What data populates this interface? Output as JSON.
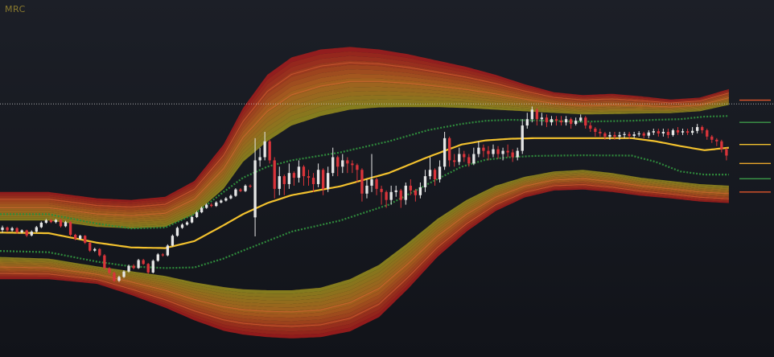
{
  "indicator": {
    "label": "MRC"
  },
  "colors": {
    "background_top": "#1c1f27",
    "background_bottom": "#111319",
    "mean": "#f2c12e",
    "inner_band": "#2f8a3c",
    "band_outer": "#b4181c",
    "band_mid": "#c06a1e",
    "band_inner": "#8e8a1e",
    "candle_up": "#e6e6e6",
    "candle_down": "#d9343a",
    "price_line": "#cfcfcf",
    "scale_mark_red": "#e0552b",
    "scale_mark_orange": "#e8a52a",
    "scale_mark_yellow": "#f2c12e",
    "scale_mark_green": "#3c9a48"
  },
  "chart_data": {
    "type": "line",
    "title": "",
    "xlabel": "",
    "ylabel": "",
    "xlim": [
      0,
      152
    ],
    "ylim": [
      0,
      100
    ],
    "grid": false,
    "price_line_level": 74.8,
    "series": [
      {
        "role": "mean",
        "x": [
          0,
          10,
          20,
          27,
          34,
          40,
          46,
          50,
          55,
          60,
          70,
          80,
          88,
          95,
          100,
          105,
          110,
          120,
          130,
          135,
          140,
          145,
          150
        ],
        "values": [
          34.2,
          34.0,
          31.0,
          29.5,
          29.3,
          31.5,
          36.5,
          40.0,
          43.5,
          46.0,
          48.8,
          53.0,
          58.0,
          62.0,
          63.3,
          63.8,
          64.0,
          64.0,
          64.0,
          63.0,
          61.5,
          60.2,
          61.0
        ]
      },
      {
        "role": "inner_upper",
        "x": [
          0,
          10,
          20,
          27,
          34,
          40,
          46,
          50,
          55,
          60,
          70,
          80,
          88,
          95,
          100,
          105,
          110,
          120,
          130,
          135,
          140,
          145,
          150
        ],
        "values": [
          40.0,
          40.0,
          37.0,
          35.5,
          35.8,
          40.0,
          47.0,
          51.5,
          55.0,
          57.0,
          59.5,
          63.0,
          66.5,
          68.5,
          69.5,
          69.8,
          69.6,
          69.2,
          69.5,
          69.8,
          70.0,
          70.8,
          71.0
        ]
      },
      {
        "role": "inner_lower",
        "x": [
          0,
          10,
          20,
          27,
          34,
          40,
          46,
          50,
          55,
          60,
          70,
          80,
          88,
          95,
          100,
          105,
          110,
          120,
          130,
          135,
          140,
          145,
          150
        ],
        "values": [
          28.4,
          28.0,
          25.0,
          23.5,
          23.0,
          23.2,
          26.0,
          28.5,
          31.5,
          34.5,
          38.0,
          43.0,
          49.5,
          55.0,
          57.2,
          58.0,
          58.4,
          58.6,
          58.5,
          56.5,
          53.5,
          52.5,
          52.5
        ]
      },
      {
        "role": "band_upper_outer",
        "x": [
          0,
          10,
          20,
          27,
          34,
          40,
          46,
          50,
          55,
          60,
          66,
          72,
          78,
          84,
          90,
          96,
          102,
          108,
          114,
          120,
          126,
          132,
          138,
          144,
          150
        ],
        "values": [
          47.0,
          47.0,
          45.0,
          44.5,
          45.5,
          50.5,
          62.0,
          73.5,
          84.0,
          89.5,
          92.0,
          92.8,
          92.0,
          90.5,
          88.5,
          86.5,
          84.0,
          81.0,
          78.5,
          77.6,
          78.0,
          77.2,
          76.2,
          76.8,
          79.5
        ]
      },
      {
        "role": "band_upper_inner",
        "x": [
          0,
          10,
          20,
          27,
          34,
          40,
          46,
          50,
          55,
          60,
          66,
          72,
          78,
          84,
          90,
          96,
          102,
          108,
          114,
          120,
          126,
          132,
          138,
          144,
          150
        ],
        "values": [
          38.0,
          38.0,
          36.0,
          35.5,
          36.0,
          40.0,
          48.0,
          56.5,
          63.0,
          68.0,
          71.0,
          73.0,
          73.7,
          73.8,
          73.8,
          73.5,
          73.0,
          72.5,
          72.0,
          71.5,
          71.6,
          71.8,
          71.9,
          72.5,
          74.5
        ]
      },
      {
        "role": "band_lower_inner",
        "x": [
          0,
          10,
          20,
          27,
          34,
          40,
          46,
          50,
          55,
          60,
          66,
          72,
          78,
          84,
          90,
          96,
          102,
          108,
          114,
          120,
          126,
          132,
          138,
          144,
          150
        ],
        "values": [
          26.5,
          26.0,
          23.5,
          22.0,
          20.5,
          18.5,
          17.0,
          16.3,
          16.0,
          16.0,
          16.8,
          19.5,
          24.0,
          31.0,
          38.5,
          44.5,
          49.0,
          51.8,
          53.5,
          54.0,
          53.0,
          51.5,
          50.5,
          49.5,
          49.0
        ]
      },
      {
        "role": "band_lower_outer",
        "x": [
          0,
          10,
          20,
          27,
          34,
          40,
          46,
          50,
          55,
          60,
          66,
          72,
          78,
          84,
          90,
          96,
          102,
          108,
          114,
          120,
          126,
          132,
          138,
          144,
          150
        ],
        "values": [
          19.5,
          19.5,
          18.0,
          14.5,
          10.5,
          6.5,
          3.2,
          2.0,
          1.2,
          0.8,
          1.2,
          3.0,
          7.5,
          16.5,
          26.5,
          34.5,
          41.0,
          45.3,
          47.5,
          47.8,
          47.0,
          45.8,
          45.0,
          44.0,
          43.5
        ]
      }
    ],
    "candles": [
      [
        0,
        35.0,
        35.8,
        36.4,
        34.2
      ],
      [
        1,
        35.8,
        34.9,
        36.1,
        34.3
      ],
      [
        2,
        34.9,
        35.6,
        36.0,
        34.5
      ],
      [
        3,
        35.6,
        34.3,
        35.9,
        33.8
      ],
      [
        4,
        34.3,
        34.9,
        35.2,
        33.9
      ],
      [
        5,
        34.9,
        33.3,
        35.1,
        32.8
      ],
      [
        6,
        33.3,
        34.5,
        34.9,
        33.0
      ],
      [
        7,
        34.5,
        35.9,
        36.3,
        34.2
      ],
      [
        8,
        35.9,
        37.3,
        37.7,
        35.6
      ],
      [
        9,
        37.3,
        38.1,
        38.5,
        37.0
      ],
      [
        10,
        38.1,
        37.5,
        38.6,
        37.2
      ],
      [
        11,
        37.5,
        38.2,
        38.5,
        37.1
      ],
      [
        12,
        38.2,
        36.2,
        38.5,
        35.8
      ],
      [
        13,
        36.2,
        37.5,
        37.9,
        35.9
      ],
      [
        14,
        37.5,
        33.5,
        37.8,
        33.1
      ],
      [
        15,
        33.5,
        32.2,
        33.8,
        31.8
      ],
      [
        16,
        32.2,
        33.2,
        33.5,
        31.9
      ],
      [
        17,
        33.2,
        31.0,
        33.4,
        30.6
      ],
      [
        18,
        31.0,
        28.5,
        31.3,
        28.1
      ],
      [
        19,
        28.5,
        29.0,
        29.4,
        28.1
      ],
      [
        20,
        29.0,
        27.0,
        29.3,
        26.6
      ],
      [
        21,
        27.0,
        23.0,
        27.4,
        22.5
      ],
      [
        22,
        23.0,
        21.5,
        23.3,
        21.0
      ],
      [
        23,
        21.5,
        19.0,
        21.9,
        18.6
      ],
      [
        24,
        19.0,
        20.2,
        20.6,
        18.6
      ],
      [
        25,
        20.2,
        21.9,
        22.3,
        19.9
      ],
      [
        26,
        21.9,
        23.7,
        24.1,
        21.6
      ],
      [
        27,
        23.7,
        23.0,
        24.2,
        22.6
      ],
      [
        28,
        23.0,
        25.5,
        25.9,
        22.7
      ],
      [
        29,
        25.5,
        24.3,
        25.9,
        24.0
      ],
      [
        30,
        24.3,
        21.6,
        24.6,
        21.2
      ],
      [
        31,
        21.6,
        25.3,
        25.7,
        21.3
      ],
      [
        32,
        25.3,
        27.3,
        27.7,
        25.0
      ],
      [
        33,
        27.3,
        27.0,
        27.7,
        26.6
      ],
      [
        34,
        27.0,
        30.1,
        30.5,
        26.7
      ],
      [
        35,
        30.1,
        33.2,
        33.6,
        29.8
      ],
      [
        36,
        33.2,
        35.7,
        36.1,
        32.9
      ],
      [
        37,
        35.7,
        36.7,
        37.1,
        35.4
      ],
      [
        38,
        36.7,
        37.4,
        37.8,
        36.4
      ],
      [
        39,
        37.4,
        39.1,
        39.5,
        37.1
      ],
      [
        40,
        39.1,
        40.6,
        41.0,
        38.8
      ],
      [
        41,
        40.6,
        42.0,
        42.4,
        40.3
      ],
      [
        42,
        42.0,
        43.0,
        43.4,
        41.7
      ],
      [
        43,
        43.0,
        42.6,
        43.5,
        42.2
      ],
      [
        44,
        42.6,
        43.7,
        44.1,
        42.3
      ],
      [
        45,
        43.7,
        44.3,
        44.7,
        43.4
      ],
      [
        46,
        44.3,
        45.0,
        45.4,
        44.0
      ],
      [
        47,
        45.0,
        45.8,
        46.2,
        44.7
      ],
      [
        48,
        45.8,
        47.8,
        48.2,
        45.5
      ],
      [
        49,
        47.8,
        47.3,
        48.2,
        47.0
      ],
      [
        50,
        47.3,
        49.0,
        49.4,
        47.0
      ],
      [
        51,
        49.0,
        48.7,
        49.4,
        48.3
      ],
      [
        52,
        39.0,
        57.0,
        64.0,
        33.0
      ],
      [
        53,
        57.0,
        58.0,
        61.0,
        55.0
      ],
      [
        54,
        58.0,
        63.0,
        66.0,
        57.0
      ],
      [
        55,
        63.0,
        57.0,
        63.5,
        56.0
      ],
      [
        56,
        57.0,
        48.0,
        58.0,
        45.0
      ],
      [
        57,
        48.0,
        52.0,
        55.0,
        46.0
      ],
      [
        58,
        52.0,
        49.5,
        52.5,
        46.0
      ],
      [
        59,
        49.5,
        53.0,
        56.0,
        48.0
      ],
      [
        60,
        53.0,
        51.5,
        53.5,
        49.0
      ],
      [
        61,
        51.5,
        55.0,
        57.0,
        50.0
      ],
      [
        62,
        55.0,
        52.0,
        55.5,
        49.0
      ],
      [
        63,
        52.0,
        51.5,
        54.0,
        49.0
      ],
      [
        64,
        51.5,
        49.5,
        53.0,
        47.0
      ],
      [
        65,
        49.5,
        54.0,
        56.0,
        48.5
      ],
      [
        66,
        54.0,
        48.0,
        54.5,
        46.0
      ],
      [
        67,
        48.0,
        53.0,
        55.0,
        47.0
      ],
      [
        68,
        53.0,
        58.0,
        61.0,
        52.0
      ],
      [
        69,
        58.0,
        55.0,
        58.5,
        52.0
      ],
      [
        70,
        55.0,
        57.0,
        59.0,
        53.0
      ],
      [
        71,
        57.0,
        56.0,
        58.0,
        53.0
      ],
      [
        72,
        56.0,
        55.5,
        57.0,
        53.0
      ],
      [
        73,
        55.5,
        54.0,
        56.0,
        50.0
      ],
      [
        74,
        54.0,
        46.5,
        54.5,
        44.0
      ],
      [
        75,
        46.5,
        49.0,
        51.0,
        45.0
      ],
      [
        76,
        49.0,
        51.0,
        59.0,
        47.0
      ],
      [
        77,
        51.0,
        48.0,
        51.5,
        46.0
      ],
      [
        78,
        48.0,
        47.0,
        49.0,
        43.0
      ],
      [
        79,
        47.0,
        44.5,
        47.5,
        42.0
      ],
      [
        80,
        44.5,
        47.0,
        49.0,
        43.0
      ],
      [
        81,
        47.0,
        47.5,
        49.0,
        45.5
      ],
      [
        82,
        47.5,
        44.5,
        48.0,
        42.0
      ],
      [
        83,
        44.5,
        49.0,
        50.0,
        43.0
      ],
      [
        84,
        49.0,
        47.5,
        51.0,
        46.0
      ],
      [
        85,
        47.5,
        46.0,
        48.0,
        44.0
      ],
      [
        86,
        46.0,
        48.5,
        50.0,
        45.0
      ],
      [
        87,
        48.5,
        52.0,
        54.0,
        47.0
      ],
      [
        88,
        52.0,
        54.0,
        58.0,
        51.0
      ],
      [
        89,
        54.0,
        51.0,
        54.5,
        49.0
      ],
      [
        90,
        51.0,
        55.0,
        57.0,
        50.0
      ],
      [
        91,
        55.0,
        64.0,
        66.0,
        54.0
      ],
      [
        92,
        64.0,
        57.0,
        64.5,
        55.0
      ],
      [
        93,
        57.0,
        56.5,
        59.0,
        55.0
      ],
      [
        94,
        56.5,
        59.0,
        61.0,
        55.5
      ],
      [
        95,
        59.0,
        58.0,
        60.0,
        56.5
      ],
      [
        96,
        58.0,
        56.0,
        59.0,
        55.0
      ],
      [
        97,
        56.0,
        59.0,
        61.0,
        55.5
      ],
      [
        98,
        59.0,
        61.0,
        63.0,
        58.0
      ],
      [
        99,
        61.0,
        60.0,
        62.0,
        58.0
      ],
      [
        100,
        60.0,
        59.0,
        61.5,
        57.0
      ],
      [
        101,
        59.0,
        60.5,
        62.0,
        58.0
      ],
      [
        102,
        60.5,
        59.0,
        61.5,
        57.5
      ],
      [
        103,
        59.0,
        60.0,
        61.0,
        57.0
      ],
      [
        104,
        60.0,
        59.5,
        62.0,
        58.0
      ],
      [
        105,
        59.5,
        58.0,
        60.5,
        56.5
      ],
      [
        106,
        58.0,
        60.0,
        61.0,
        57.0
      ],
      [
        107,
        60.0,
        68.0,
        70.0,
        59.0
      ],
      [
        108,
        68.0,
        70.0,
        72.0,
        67.0
      ],
      [
        109,
        70.0,
        73.0,
        74.0,
        69.0
      ],
      [
        110,
        73.0,
        70.0,
        73.5,
        68.0
      ],
      [
        111,
        70.0,
        70.5,
        72.0,
        68.0
      ],
      [
        112,
        70.5,
        69.0,
        71.5,
        67.5
      ],
      [
        113,
        69.0,
        70.0,
        71.0,
        68.0
      ],
      [
        114,
        70.0,
        69.5,
        71.0,
        68.0
      ],
      [
        115,
        69.5,
        69.0,
        71.0,
        68.0
      ],
      [
        116,
        69.0,
        70.0,
        71.0,
        68.0
      ],
      [
        117,
        70.0,
        68.5,
        70.5,
        67.0
      ],
      [
        118,
        68.5,
        69.5,
        70.5,
        68.0
      ],
      [
        119,
        69.5,
        70.5,
        71.5,
        69.0
      ],
      [
        120,
        70.5,
        68.0,
        71.0,
        67.0
      ],
      [
        121,
        68.0,
        67.0,
        69.0,
        66.0
      ],
      [
        122,
        67.0,
        66.0,
        67.5,
        64.5
      ],
      [
        123,
        66.0,
        65.5,
        67.0,
        64.5
      ],
      [
        124,
        65.5,
        64.5,
        66.0,
        63.5
      ],
      [
        125,
        64.5,
        65.0,
        66.0,
        63.5
      ],
      [
        126,
        65.0,
        64.5,
        66.0,
        63.5
      ],
      [
        127,
        64.5,
        65.0,
        66.0,
        63.5
      ],
      [
        128,
        65.0,
        65.3,
        66.0,
        64.0
      ],
      [
        129,
        65.3,
        64.7,
        66.0,
        63.8
      ],
      [
        130,
        64.7,
        65.2,
        66.0,
        64.0
      ],
      [
        131,
        65.2,
        65.5,
        66.2,
        64.5
      ],
      [
        132,
        65.5,
        64.8,
        66.0,
        64.0
      ],
      [
        133,
        64.8,
        65.8,
        66.5,
        64.0
      ],
      [
        134,
        65.8,
        66.2,
        67.0,
        65.0
      ],
      [
        135,
        66.2,
        65.5,
        67.0,
        64.5
      ],
      [
        136,
        65.5,
        66.0,
        67.0,
        64.5
      ],
      [
        137,
        66.0,
        65.0,
        67.0,
        64.0
      ],
      [
        138,
        65.0,
        66.5,
        67.0,
        64.5
      ],
      [
        139,
        66.5,
        65.8,
        67.5,
        65.0
      ],
      [
        140,
        65.8,
        66.2,
        67.0,
        65.0
      ],
      [
        141,
        66.2,
        65.7,
        67.0,
        65.0
      ],
      [
        142,
        65.7,
        66.3,
        67.5,
        65.0
      ],
      [
        143,
        66.3,
        67.5,
        68.5,
        65.5
      ],
      [
        144,
        67.5,
        66.5,
        68.0,
        65.5
      ],
      [
        145,
        66.5,
        64.5,
        67.0,
        63.5
      ],
      [
        146,
        64.5,
        63.5,
        65.0,
        62.5
      ],
      [
        147,
        63.5,
        63.0,
        64.0,
        61.5
      ],
      [
        148,
        63.0,
        60.5,
        63.5,
        59.5
      ],
      [
        149,
        60.5,
        58.5,
        61.0,
        57.0
      ]
    ],
    "scale_marks": [
      {
        "role": "upper_outer",
        "value": 76.0,
        "color": "#e0552b"
      },
      {
        "role": "upper_inner",
        "value": 69.0,
        "color": "#3c9a48"
      },
      {
        "role": "mean",
        "value": 62.0,
        "color": "#f2c12e"
      },
      {
        "role": "lower_inner",
        "value": 56.0,
        "color": "#e8a52a"
      },
      {
        "role": "lower_mid",
        "value": 51.2,
        "color": "#3c9a48"
      },
      {
        "role": "lower_outer",
        "value": 47.0,
        "color": "#e0552b"
      }
    ]
  }
}
